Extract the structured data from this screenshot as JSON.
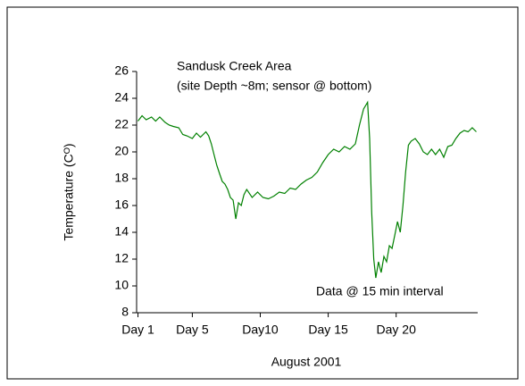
{
  "chart_data": {
    "type": "line",
    "annotations": [
      "Sandusk Creek Area",
      "(site Depth ~8m; sensor @ bottom)",
      "Data @ 15 min interval"
    ],
    "x_label": "August 2001",
    "y_label": "Temperature (Cᴼ)",
    "ylim": [
      8,
      26
    ],
    "yticks": [
      8,
      10,
      12,
      14,
      16,
      18,
      20,
      22,
      24,
      26
    ],
    "xlim": [
      0.9,
      26
    ],
    "xticks": [
      {
        "value": 1,
        "label": "Day 1"
      },
      {
        "value": 5,
        "label": "Day 5"
      },
      {
        "value": 10,
        "label": "Day10"
      },
      {
        "value": 15,
        "label": "Day 15"
      },
      {
        "value": 20,
        "label": "Day 20"
      }
    ],
    "x": [
      1,
      1.3,
      1.6,
      2,
      2.3,
      2.6,
      3,
      3.3,
      3.6,
      4,
      4.3,
      4.6,
      5,
      5.3,
      5.6,
      6,
      6.2,
      6.4,
      6.6,
      6.8,
      7,
      7.2,
      7.4,
      7.6,
      7.8,
      8,
      8.2,
      8.4,
      8.6,
      8.8,
      9,
      9.4,
      9.8,
      10.2,
      10.6,
      11,
      11.4,
      11.8,
      12.2,
      12.6,
      13,
      13.4,
      13.8,
      14.2,
      14.6,
      15,
      15.4,
      15.8,
      16.2,
      16.6,
      17,
      17.3,
      17.6,
      17.9,
      18.05,
      18.2,
      18.35,
      18.5,
      18.7,
      18.9,
      19.1,
      19.3,
      19.5,
      19.7,
      19.9,
      20.1,
      20.3,
      20.5,
      20.7,
      20.9,
      21.1,
      21.4,
      21.7,
      22,
      22.3,
      22.6,
      22.9,
      23.2,
      23.5,
      23.8,
      24.1,
      24.4,
      24.7,
      25,
      25.3,
      25.6,
      25.9
    ],
    "series": [
      {
        "name": "Temperature",
        "color": "#008000",
        "values": [
          22.3,
          22.7,
          22.4,
          22.6,
          22.3,
          22.6,
          22.2,
          22.0,
          21.9,
          21.8,
          21.3,
          21.2,
          21.0,
          21.4,
          21.1,
          21.5,
          21.2,
          20.6,
          19.8,
          19.0,
          18.4,
          17.8,
          17.6,
          17.2,
          16.6,
          16.4,
          15.0,
          16.2,
          16.0,
          16.8,
          17.2,
          16.6,
          17.0,
          16.6,
          16.5,
          16.7,
          17.0,
          16.9,
          17.3,
          17.2,
          17.6,
          17.9,
          18.1,
          18.5,
          19.2,
          19.8,
          20.2,
          20.0,
          20.4,
          20.2,
          20.6,
          22.0,
          23.2,
          23.7,
          21.0,
          15.5,
          12.0,
          10.6,
          11.8,
          11.0,
          12.2,
          11.8,
          13.0,
          12.8,
          13.8,
          14.8,
          14.0,
          16.0,
          18.5,
          20.5,
          20.8,
          21.0,
          20.6,
          20.0,
          19.8,
          20.2,
          19.8,
          20.2,
          19.6,
          20.4,
          20.5,
          21.0,
          21.4,
          21.6,
          21.5,
          21.8,
          21.5
        ]
      }
    ]
  }
}
